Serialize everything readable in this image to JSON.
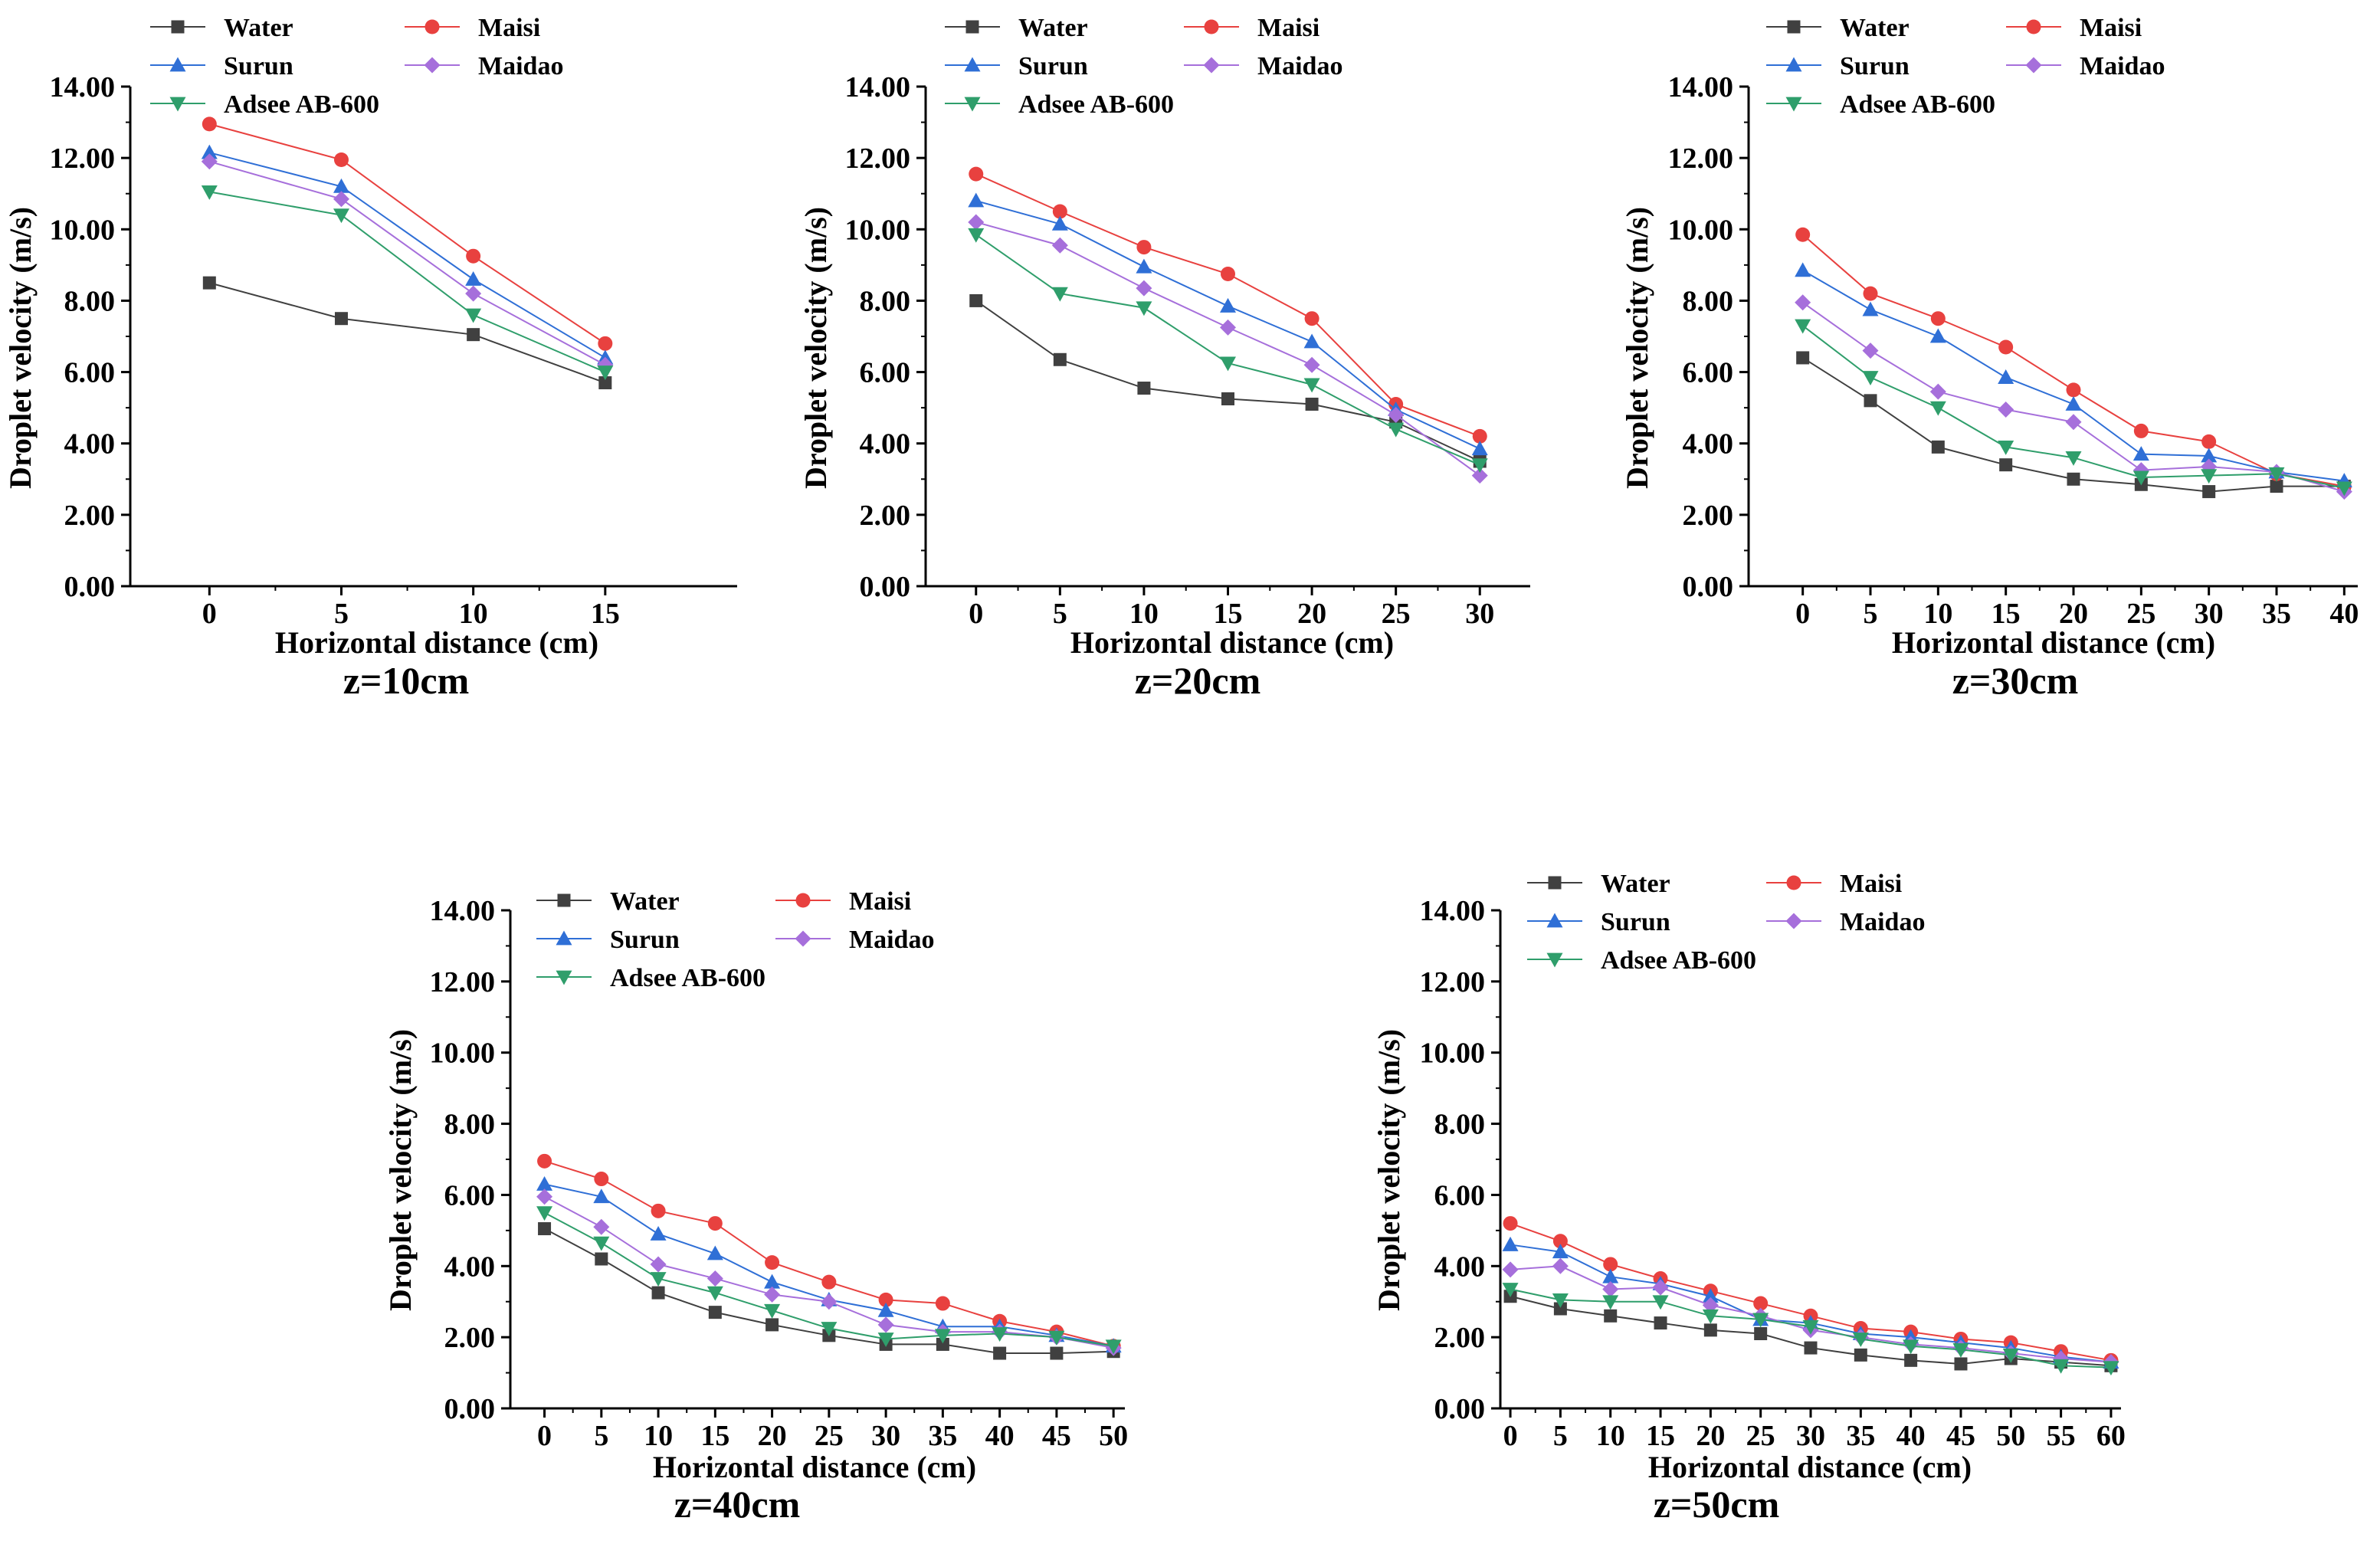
{
  "colors": {
    "Water": "#404040",
    "Maisi": "#e8413f",
    "Surun": "#2f6fd6",
    "Maidao": "#a66fdb",
    "Adsee AB-600": "#2f9e6b"
  },
  "markers": {
    "Water": "square",
    "Maisi": "circle",
    "Surun": "triangle-up",
    "Maidao": "diamond",
    "Adsee AB-600": "triangle-down"
  },
  "chart_data": [
    {
      "type": "line",
      "caption": "z=10cm",
      "xlabel": "Horizontal distance (cm)",
      "ylabel": "Droplet velocity (m/s)",
      "x": [
        0,
        5,
        10,
        15
      ],
      "xlim": [
        -3,
        20
      ],
      "ylim": [
        0,
        14
      ],
      "yticks": [
        "0.00",
        "2.00",
        "4.00",
        "6.00",
        "8.00",
        "10.00",
        "12.00",
        "14.00"
      ],
      "series": [
        {
          "name": "Water",
          "values": [
            8.5,
            7.5,
            7.05,
            5.7
          ]
        },
        {
          "name": "Maisi",
          "values": [
            12.95,
            11.95,
            9.25,
            6.8
          ]
        },
        {
          "name": "Surun",
          "values": [
            12.15,
            11.2,
            8.6,
            6.4
          ]
        },
        {
          "name": "Maidao",
          "values": [
            11.9,
            10.85,
            8.2,
            6.2
          ]
        },
        {
          "name": "Adsee AB-600",
          "values": [
            11.05,
            10.4,
            7.6,
            6.0
          ]
        }
      ]
    },
    {
      "type": "line",
      "caption": "z=20cm",
      "xlabel": "Horizontal distance (cm)",
      "ylabel": "Droplet velocity (m/s)",
      "x": [
        0,
        5,
        10,
        15,
        20,
        25,
        30
      ],
      "xlim": [
        -3,
        33
      ],
      "ylim": [
        0,
        14
      ],
      "yticks": [
        "0.00",
        "2.00",
        "4.00",
        "6.00",
        "8.00",
        "10.00",
        "12.00",
        "14.00"
      ],
      "series": [
        {
          "name": "Water",
          "values": [
            8.0,
            6.35,
            5.55,
            5.25,
            5.1,
            4.6,
            3.5
          ]
        },
        {
          "name": "Maisi",
          "values": [
            11.55,
            10.5,
            9.5,
            8.75,
            7.5,
            5.1,
            4.2
          ]
        },
        {
          "name": "Surun",
          "values": [
            10.8,
            10.15,
            8.95,
            7.85,
            6.85,
            4.95,
            3.85
          ]
        },
        {
          "name": "Maidao",
          "values": [
            10.2,
            9.55,
            8.35,
            7.25,
            6.2,
            4.8,
            3.1
          ]
        },
        {
          "name": "Adsee AB-600",
          "values": [
            9.85,
            8.2,
            7.8,
            6.25,
            5.65,
            4.4,
            3.4
          ]
        }
      ]
    },
    {
      "type": "line",
      "caption": "z=30cm",
      "xlabel": "Horizontal distance (cm)",
      "ylabel": "Droplet velocity (m/s)",
      "x": [
        0,
        5,
        10,
        15,
        20,
        25,
        30,
        35,
        40
      ],
      "xlim": [
        -4,
        41
      ],
      "ylim": [
        0,
        14
      ],
      "yticks": [
        "0.00",
        "2.00",
        "4.00",
        "6.00",
        "8.00",
        "10.00",
        "12.00",
        "14.00"
      ],
      "series": [
        {
          "name": "Water",
          "values": [
            6.4,
            5.2,
            3.9,
            3.4,
            3.0,
            2.85,
            2.65,
            2.8,
            2.8
          ]
        },
        {
          "name": "Maisi",
          "values": [
            9.85,
            8.2,
            7.5,
            6.7,
            5.5,
            4.35,
            4.05,
            3.15,
            2.8
          ]
        },
        {
          "name": "Surun",
          "values": [
            8.85,
            7.75,
            7.0,
            5.85,
            5.1,
            3.7,
            3.65,
            3.2,
            2.95
          ]
        },
        {
          "name": "Maidao",
          "values": [
            7.95,
            6.6,
            5.45,
            4.95,
            4.6,
            3.25,
            3.35,
            3.2,
            2.65
          ]
        },
        {
          "name": "Adsee AB-600",
          "values": [
            7.3,
            5.85,
            5.0,
            3.9,
            3.6,
            3.05,
            3.1,
            3.15,
            2.75
          ]
        }
      ]
    },
    {
      "type": "line",
      "caption": "z=40cm",
      "xlabel": "Horizontal distance (cm)",
      "ylabel": "Droplet velocity (m/s)",
      "x": [
        0,
        5,
        10,
        15,
        20,
        25,
        30,
        35,
        40,
        45,
        50
      ],
      "xlim": [
        -3,
        51
      ],
      "ylim": [
        0,
        14
      ],
      "yticks": [
        "0.00",
        "2.00",
        "4.00",
        "6.00",
        "8.00",
        "10.00",
        "12.00",
        "14.00"
      ],
      "series": [
        {
          "name": "Water",
          "values": [
            5.05,
            4.2,
            3.25,
            2.7,
            2.35,
            2.05,
            1.8,
            1.8,
            1.55,
            1.55,
            1.6
          ]
        },
        {
          "name": "Maisi",
          "values": [
            6.95,
            6.45,
            5.55,
            5.2,
            4.1,
            3.55,
            3.05,
            2.95,
            2.45,
            2.15,
            1.75
          ]
        },
        {
          "name": "Surun",
          "values": [
            6.3,
            5.95,
            4.9,
            4.35,
            3.55,
            3.05,
            2.75,
            2.3,
            2.3,
            2.05,
            1.75
          ]
        },
        {
          "name": "Maidao",
          "values": [
            5.95,
            5.1,
            4.05,
            3.65,
            3.2,
            3.0,
            2.35,
            2.15,
            2.15,
            2.0,
            1.7
          ]
        },
        {
          "name": "Adsee AB-600",
          "values": [
            5.5,
            4.65,
            3.65,
            3.25,
            2.75,
            2.25,
            1.95,
            2.05,
            2.1,
            2.0,
            1.75
          ]
        }
      ]
    },
    {
      "type": "line",
      "caption": "z=50cm",
      "xlabel": "Horizontal distance (cm)",
      "ylabel": "Droplet velocity (m/s)",
      "x": [
        0,
        5,
        10,
        15,
        20,
        25,
        30,
        35,
        40,
        45,
        50,
        55,
        60
      ],
      "xlim": [
        -1,
        61
      ],
      "ylim": [
        0,
        14
      ],
      "yticks": [
        "0.00",
        "2.00",
        "4.00",
        "6.00",
        "8.00",
        "10.00",
        "12.00",
        "14.00"
      ],
      "series": [
        {
          "name": "Water",
          "values": [
            3.15,
            2.8,
            2.6,
            2.4,
            2.2,
            2.1,
            1.7,
            1.5,
            1.35,
            1.25,
            1.4,
            1.3,
            1.2
          ]
        },
        {
          "name": "Maisi",
          "values": [
            5.2,
            4.7,
            4.05,
            3.65,
            3.3,
            2.95,
            2.6,
            2.25,
            2.15,
            1.95,
            1.85,
            1.6,
            1.35
          ]
        },
        {
          "name": "Surun",
          "values": [
            4.6,
            4.4,
            3.7,
            3.5,
            3.15,
            2.5,
            2.4,
            2.1,
            2.0,
            1.85,
            1.7,
            1.45,
            1.3
          ]
        },
        {
          "name": "Maidao",
          "values": [
            3.9,
            4.0,
            3.35,
            3.4,
            2.9,
            2.6,
            2.2,
            2.0,
            1.8,
            1.7,
            1.55,
            1.4,
            1.3
          ]
        },
        {
          "name": "Adsee AB-600",
          "values": [
            3.35,
            3.05,
            3.0,
            3.0,
            2.6,
            2.5,
            2.3,
            1.95,
            1.75,
            1.65,
            1.5,
            1.2,
            1.15
          ]
        }
      ]
    }
  ]
}
